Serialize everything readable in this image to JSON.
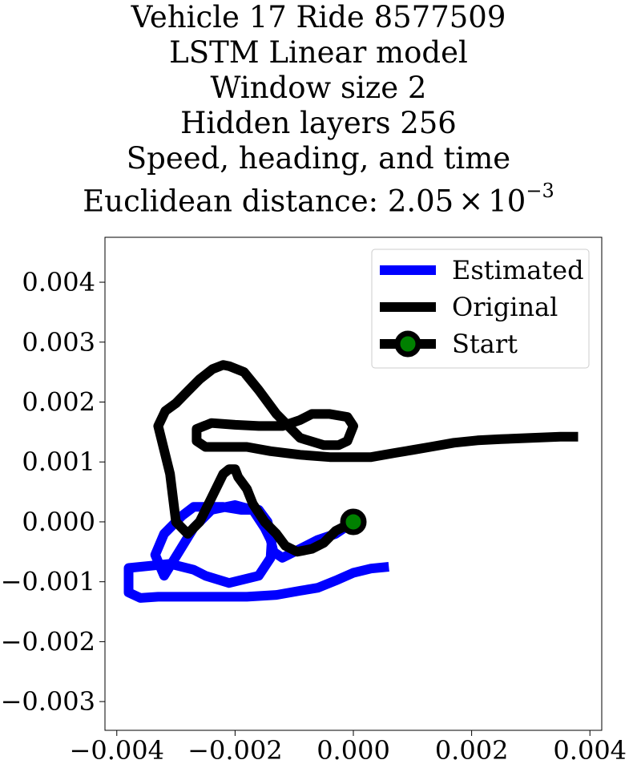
{
  "chart_data": {
    "type": "line",
    "title_lines": [
      "Vehicle 17 Ride 8577509",
      "LSTM Linear model",
      "Window size 2",
      "Hidden layers 256",
      "Speed, heading, and time"
    ],
    "title_metric_prefix": "Euclidean distance: ",
    "title_metric_mantissa": "2.05",
    "title_metric_times": "×",
    "title_metric_base": "10",
    "title_metric_exponent": "−3",
    "xlim": [
      -0.0042,
      0.0042
    ],
    "ylim": [
      -0.00348,
      0.00475
    ],
    "xticks": [
      -0.004,
      -0.002,
      0.0,
      0.002,
      0.004
    ],
    "xtick_labels": [
      "−0.004",
      "−0.002",
      "0.000",
      "0.002",
      "0.004"
    ],
    "yticks": [
      -0.003,
      -0.002,
      -0.001,
      0.0,
      0.001,
      0.002,
      0.003,
      0.004
    ],
    "ytick_labels": [
      "−0.003",
      "−0.002",
      "−0.001",
      "0.000",
      "0.001",
      "0.002",
      "0.003",
      "0.004"
    ],
    "grid": false,
    "legend_position": "top-right",
    "legend": [
      "Estimated",
      "Original",
      "Start"
    ],
    "colors": {
      "estimated": "#0000ff",
      "original": "#000000",
      "start_marker_fill": "#008000",
      "start_marker_edge": "#000000"
    },
    "series": [
      {
        "name": "Estimated",
        "x": [
          0.0,
          -0.0003,
          -0.0006,
          -0.0009,
          -0.0012,
          -0.00135,
          -0.0014,
          -0.0015,
          -0.0017,
          -0.002,
          -0.0024,
          -0.0027,
          -0.00295,
          -0.0032,
          -0.00335,
          -0.0032,
          -0.0029,
          -0.0027,
          -0.0026,
          -0.0024,
          -0.0022,
          -0.0019,
          -0.0016,
          -0.00145,
          -0.00138,
          -0.0014,
          -0.0016,
          -0.0021,
          -0.0025,
          -0.0027,
          -0.0031,
          -0.0038,
          -0.0038,
          -0.0038,
          -0.0036,
          -0.0033,
          -0.0028,
          -0.0022,
          -0.0018,
          -0.0013,
          -0.0009,
          -0.0006,
          -0.0003,
          0.0,
          0.0003,
          0.0006
        ],
        "y": [
          0.0,
          -0.0002,
          -0.0003,
          -0.00045,
          -0.0006,
          -0.0005,
          -0.0003,
          -0.0001,
          0.0002,
          0.00028,
          0.0002,
          -0.0001,
          -0.0005,
          -0.0009,
          -0.00055,
          -0.0002,
          0.0001,
          0.00025,
          0.00025,
          0.00025,
          0.00025,
          0.0002,
          0.0002,
          0.0,
          -0.0003,
          -0.0006,
          -0.0009,
          -0.00102,
          -0.0009,
          -0.0008,
          -0.0007,
          -0.00077,
          -0.00095,
          -0.00118,
          -0.00127,
          -0.00125,
          -0.00125,
          -0.00125,
          -0.00125,
          -0.00122,
          -0.00115,
          -0.0011,
          -0.00098,
          -0.00085,
          -0.00078,
          -0.00075
        ]
      },
      {
        "name": "Original",
        "x": [
          0.0,
          -0.0003,
          -0.0005,
          -0.0007,
          -0.00095,
          -0.00115,
          -0.0013,
          -0.0015,
          -0.0017,
          -0.0018,
          -0.00195,
          -0.002,
          -0.0021,
          -0.0022,
          -0.0024,
          -0.0026,
          -0.0028,
          -0.003,
          -0.00305,
          -0.0031,
          -0.0032,
          -0.0033,
          -0.00318,
          -0.003,
          -0.0028,
          -0.0026,
          -0.00238,
          -0.0022,
          -0.0021,
          -0.00185,
          -0.0016,
          -0.0013,
          -0.0009,
          -0.0005,
          -0.00025,
          -0.0001,
          0.0,
          -0.0001,
          -0.0004,
          -0.0007,
          -0.0009,
          -0.0012,
          -0.0016,
          -0.002,
          -0.0024,
          -0.00265,
          -0.00265,
          -0.0025,
          -0.0022,
          -0.0018,
          -0.0014,
          -0.0009,
          -0.0004,
          0.0,
          0.0003,
          0.0007,
          0.001,
          0.0013,
          0.0017,
          0.0021,
          0.0025,
          0.003,
          0.0035,
          0.0038
        ],
        "y": [
          0.0,
          -0.00015,
          -0.00035,
          -0.00045,
          -0.0005,
          -0.0004,
          -0.0002,
          0.0,
          0.0003,
          0.00055,
          0.00075,
          0.00088,
          0.00088,
          0.0008,
          0.0004,
          0.0,
          -0.0002,
          0.0,
          0.0004,
          0.0008,
          0.0012,
          0.0016,
          0.00185,
          0.00198,
          0.00218,
          0.00238,
          0.00255,
          0.00262,
          0.0026,
          0.0025,
          0.0022,
          0.0018,
          0.0014,
          0.00128,
          0.00128,
          0.00135,
          0.0016,
          0.00175,
          0.0018,
          0.0018,
          0.0017,
          0.0016,
          0.0016,
          0.00162,
          0.00165,
          0.00155,
          0.00135,
          0.00125,
          0.00125,
          0.00125,
          0.00118,
          0.00112,
          0.00108,
          0.00108,
          0.00108,
          0.00115,
          0.0012,
          0.00125,
          0.00132,
          0.00136,
          0.00138,
          0.0014,
          0.00142,
          0.00142
        ]
      }
    ],
    "start_point": {
      "name": "Start",
      "x": 0.0,
      "y": 0.0
    }
  }
}
